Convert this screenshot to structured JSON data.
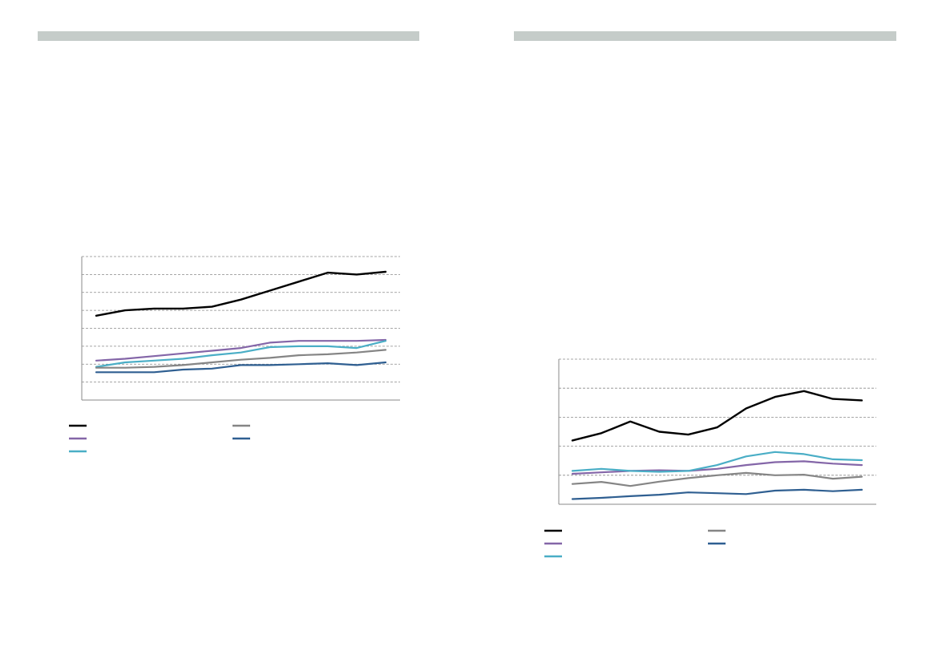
{
  "pages": [
    {
      "id": "left",
      "header": {
        "color": "#c5ccc9"
      }
    },
    {
      "id": "right",
      "header": {
        "color": "#c5ccc9"
      }
    }
  ],
  "chart_data": [
    {
      "type": "line",
      "grid": true,
      "grid_style": "dashed horizontal",
      "ylim": [
        0,
        8
      ],
      "x": [
        1,
        2,
        3,
        4,
        5,
        6,
        7,
        8,
        9,
        10,
        11
      ],
      "series": [
        {
          "color": "#000000",
          "values": [
            4.7,
            5.0,
            5.1,
            5.1,
            5.2,
            5.6,
            6.1,
            6.6,
            7.1,
            7.0,
            7.15
          ]
        },
        {
          "color": "#8466a8",
          "values": [
            2.2,
            2.3,
            2.45,
            2.6,
            2.75,
            2.9,
            3.2,
            3.3,
            3.3,
            3.3,
            3.35
          ]
        },
        {
          "color": "#4aaec6",
          "values": [
            1.85,
            2.1,
            2.2,
            2.3,
            2.5,
            2.65,
            2.95,
            3.0,
            3.0,
            2.9,
            3.3
          ]
        },
        {
          "color": "#858585",
          "values": [
            1.8,
            1.8,
            1.85,
            1.95,
            2.1,
            2.25,
            2.35,
            2.5,
            2.55,
            2.65,
            2.8
          ]
        },
        {
          "color": "#2f5f91",
          "values": [
            1.55,
            1.55,
            1.55,
            1.7,
            1.75,
            1.95,
            1.95,
            2.0,
            2.05,
            1.95,
            2.1
          ]
        }
      ],
      "legend": {
        "placement": "bottom",
        "columns": 2,
        "order": [
          0,
          3,
          1,
          4,
          2
        ]
      }
    },
    {
      "type": "line",
      "grid": true,
      "grid_style": "dashed horizontal",
      "ylim": [
        0,
        5
      ],
      "x": [
        1,
        2,
        3,
        4,
        5,
        6,
        7,
        8,
        9,
        10,
        11
      ],
      "series": [
        {
          "color": "#000000",
          "values": [
            2.2,
            2.45,
            2.85,
            2.5,
            2.4,
            2.65,
            3.3,
            3.7,
            3.9,
            3.63,
            3.58
          ]
        },
        {
          "color": "#8466a8",
          "values": [
            1.05,
            1.1,
            1.15,
            1.17,
            1.15,
            1.22,
            1.35,
            1.45,
            1.48,
            1.4,
            1.35
          ]
        },
        {
          "color": "#4aaec6",
          "values": [
            1.15,
            1.22,
            1.15,
            1.12,
            1.15,
            1.35,
            1.65,
            1.8,
            1.73,
            1.55,
            1.52
          ]
        },
        {
          "color": "#858585",
          "values": [
            0.7,
            0.77,
            0.63,
            0.78,
            0.9,
            1.0,
            1.08,
            1.0,
            1.02,
            0.88,
            0.95
          ]
        },
        {
          "color": "#2f5f91",
          "values": [
            0.18,
            0.22,
            0.28,
            0.33,
            0.41,
            0.38,
            0.35,
            0.47,
            0.5,
            0.45,
            0.5
          ]
        }
      ],
      "legend": {
        "placement": "bottom",
        "columns": 2,
        "order": [
          0,
          3,
          1,
          4,
          2
        ]
      }
    }
  ]
}
